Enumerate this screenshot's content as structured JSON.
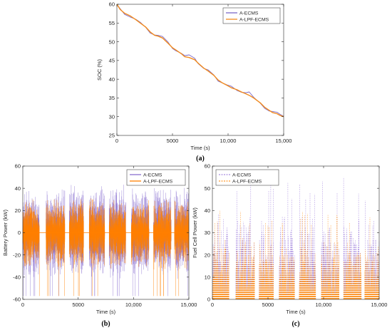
{
  "chart_data": [
    {
      "id": "a",
      "type": "line",
      "caption": "(a)",
      "xlabel": "Time (s)",
      "ylabel": "SOC (%)",
      "xlim": [
        0,
        15000
      ],
      "ylim": [
        25,
        60
      ],
      "xticks": [
        0,
        5000,
        10000,
        15000
      ],
      "xtick_labels": [
        "0",
        "5000",
        "10,000",
        "15,000"
      ],
      "yticks": [
        25,
        30,
        35,
        40,
        45,
        50,
        55,
        60
      ],
      "ytick_labels": [
        "25",
        "30",
        "35",
        "40",
        "45",
        "50",
        "55",
        "60"
      ],
      "legend_position": "top-right",
      "series": [
        {
          "name": "A-ECMS",
          "color": "#7b68c8",
          "x": [
            0,
            300,
            700,
            1200,
            1700,
            2100,
            2600,
            3000,
            3400,
            3700,
            4100,
            4600,
            5000,
            5300,
            5800,
            6100,
            6500,
            7000,
            7300,
            7800,
            8200,
            8700,
            9100,
            9500,
            9900,
            10300,
            10800,
            11200,
            11600,
            11900,
            12300,
            12900,
            13300,
            13700,
            14000,
            14400,
            14700,
            15000
          ],
          "y": [
            60.0,
            58.8,
            57.3,
            56.6,
            56.0,
            55.2,
            53.8,
            52.3,
            51.8,
            51.7,
            51.4,
            49.9,
            48.2,
            47.6,
            46.9,
            46.3,
            46.5,
            45.6,
            44.2,
            42.9,
            42.5,
            41.2,
            39.5,
            39.0,
            38.5,
            38.1,
            37.0,
            36.5,
            36.4,
            36.6,
            35.2,
            33.6,
            32.2,
            31.5,
            31.4,
            31.2,
            30.6,
            30.1
          ]
        },
        {
          "name": "A-LPF-ECMS",
          "color": "#f28b1e",
          "x": [
            0,
            300,
            700,
            1200,
            1700,
            2100,
            2600,
            3000,
            3400,
            3700,
            4100,
            4600,
            5000,
            5300,
            5800,
            6100,
            6500,
            7000,
            7300,
            7800,
            8200,
            8700,
            9100,
            9500,
            9900,
            10300,
            10800,
            11200,
            11600,
            11900,
            12300,
            12900,
            13300,
            13700,
            14000,
            14400,
            14700,
            15000
          ],
          "y": [
            60.0,
            58.6,
            57.6,
            56.9,
            55.9,
            55.0,
            53.9,
            52.6,
            51.7,
            51.5,
            51.0,
            49.6,
            48.4,
            47.8,
            46.8,
            46.0,
            45.8,
            45.2,
            44.3,
            43.0,
            42.2,
            41.1,
            39.8,
            39.0,
            38.4,
            37.7,
            37.2,
            36.6,
            36.1,
            35.7,
            35.0,
            33.7,
            32.5,
            31.7,
            31.1,
            30.8,
            30.3,
            30.0
          ]
        }
      ]
    },
    {
      "id": "b",
      "type": "line",
      "caption": "(b)",
      "xlabel": "Time (s)",
      "ylabel": "Battery Power (kW)",
      "xlim": [
        0,
        15000
      ],
      "ylim": [
        -60,
        60
      ],
      "xticks": [
        0,
        5000,
        10000,
        15000
      ],
      "xtick_labels": [
        "0",
        "5000",
        "10,000",
        "15,000"
      ],
      "yticks": [
        -60,
        -40,
        -20,
        0,
        20,
        40,
        60
      ],
      "ytick_labels": [
        "-60",
        "-40",
        "-20",
        "0",
        "20",
        "40",
        "60"
      ],
      "legend_position": "top-right",
      "driving_segments_s": [
        [
          0,
          1500
        ],
        [
          2100,
          3800
        ],
        [
          4200,
          5500
        ],
        [
          6000,
          7400
        ],
        [
          7800,
          9300
        ],
        [
          9800,
          11400
        ],
        [
          11800,
          13400
        ],
        [
          13700,
          15000
        ]
      ],
      "series": [
        {
          "name": "A-ECMS",
          "color": "#8a6fd0",
          "peak_kW": 45,
          "trough_kW": -57
        },
        {
          "name": "A-LPF-ECMS",
          "color": "#ff8000",
          "peak_kW": 32,
          "trough_kW": -57
        }
      ]
    },
    {
      "id": "c",
      "type": "line",
      "caption": "(c)",
      "xlabel": "Time (s)",
      "ylabel": "Fuel Cell Power (kW)",
      "xlim": [
        0,
        15000
      ],
      "ylim": [
        0,
        60
      ],
      "xticks": [
        0,
        5000,
        10000,
        15000
      ],
      "xtick_labels": [
        "0",
        "5000",
        "10,000",
        "15,000"
      ],
      "yticks": [
        0,
        10,
        20,
        30,
        40,
        50,
        60
      ],
      "ytick_labels": [
        "0",
        "10",
        "20",
        "30",
        "40",
        "50",
        "60"
      ],
      "legend_position": "top-left",
      "driving_segments_s": [
        [
          0,
          1500
        ],
        [
          2100,
          3800
        ],
        [
          4200,
          5500
        ],
        [
          6000,
          7400
        ],
        [
          7800,
          9300
        ],
        [
          9800,
          11400
        ],
        [
          11800,
          13400
        ],
        [
          13700,
          15000
        ]
      ],
      "series": [
        {
          "name": "A-ECMS",
          "color": "#a98de0",
          "dash": true,
          "peak_kW": 55
        },
        {
          "name": "A-LPF-ECMS",
          "color": "#ff9a2e",
          "dash": true,
          "peak_kW": 40
        }
      ]
    }
  ]
}
